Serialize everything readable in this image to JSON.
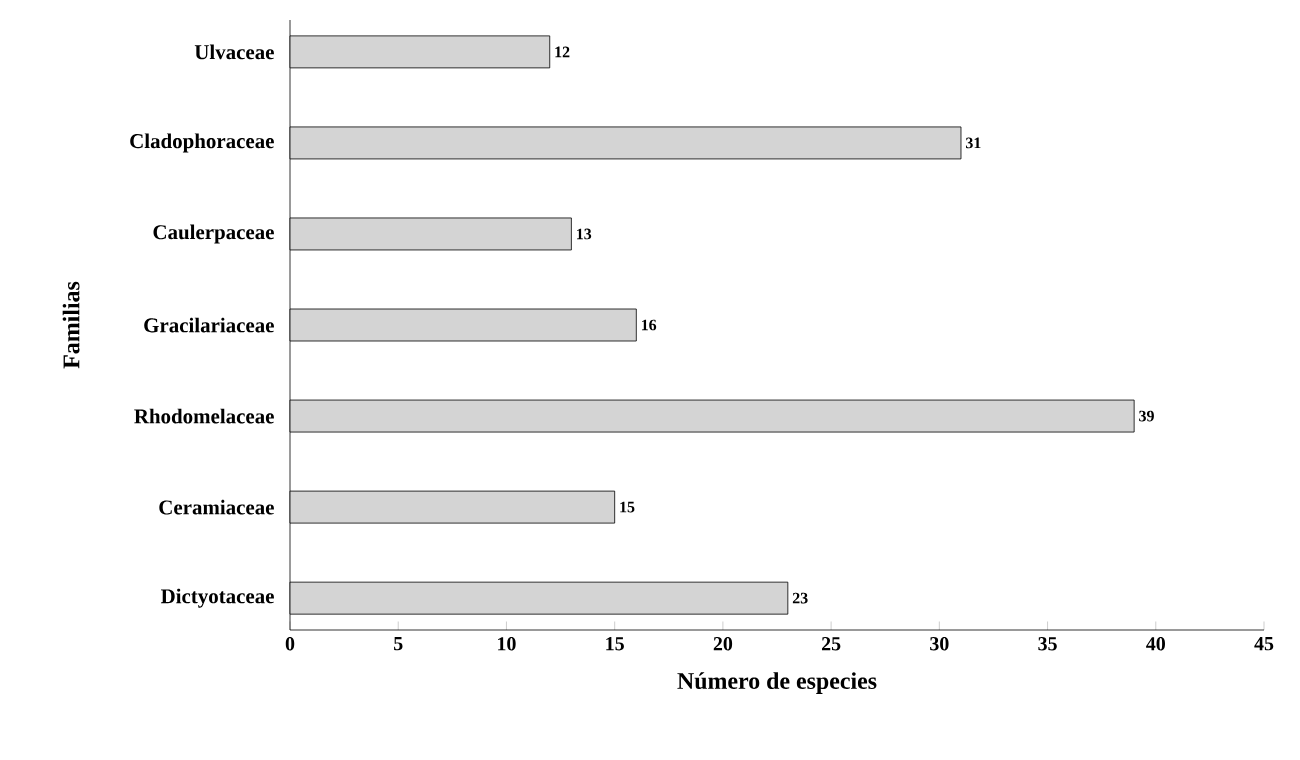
{
  "chart_data": {
    "type": "bar",
    "orientation": "horizontal",
    "xlabel": "Número de especies",
    "ylabel": "Familias",
    "categories": [
      "Ulvaceae",
      "Cladophoraceae",
      "Caulerpaceae",
      "Gracilariaceae",
      "Rhodomelaceae",
      "Ceramiaceae",
      "Dictyotaceae"
    ],
    "values": [
      12,
      31,
      13,
      16,
      39,
      15,
      23
    ],
    "color": "#d4d4d4",
    "xlim": [
      0,
      45
    ],
    "xticks": [
      0,
      5,
      10,
      15,
      20,
      25,
      30,
      35,
      40,
      45
    ],
    "data_labels": true
  }
}
